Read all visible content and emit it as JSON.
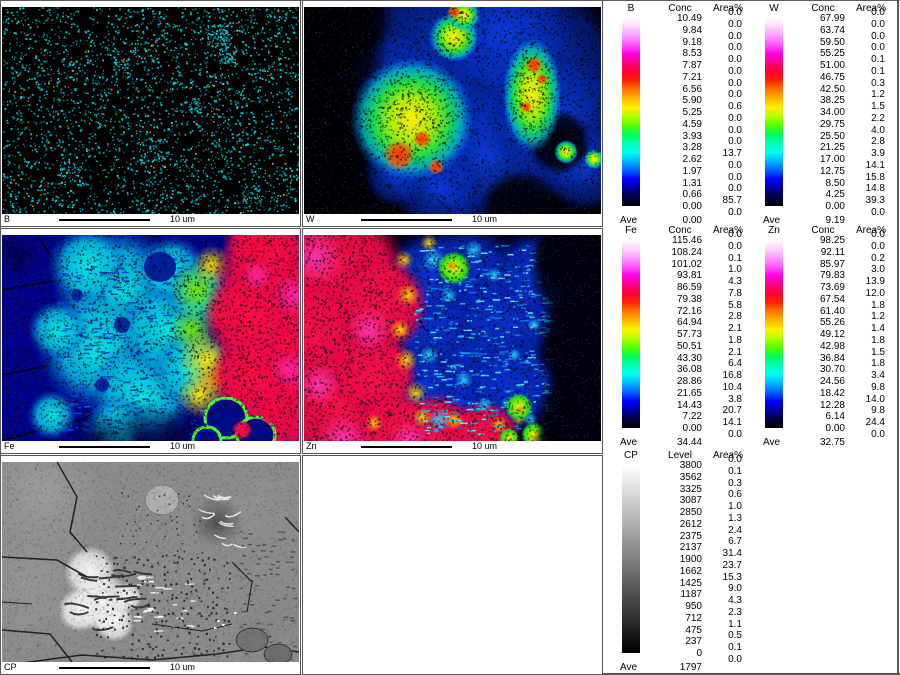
{
  "scale_text": "10 um",
  "colorbar_rainbow": [
    "#ffffff",
    "#ffd2ff",
    "#ff9bff",
    "#ff55ff",
    "#ff00e6",
    "#ff0084",
    "#ff0032",
    "#ff2600",
    "#ff7800",
    "#ffb400",
    "#fff000",
    "#b4ff00",
    "#55ff00",
    "#00ff55",
    "#00ffb4",
    "#00fff0",
    "#00b4ff",
    "#0064ff",
    "#0000ff",
    "#0000a0",
    "#000046",
    "#000000"
  ],
  "colorbar_gray": [
    "#ffffff",
    "#000000"
  ],
  "maps": [
    {
      "id": "b",
      "label": "B",
      "scale": "10 um",
      "colors": {
        "bg": "#000000",
        "dot": "#00c8d2"
      }
    },
    {
      "id": "w",
      "label": "W",
      "scale": "10 um",
      "colors": {
        "bg": "#000004",
        "blue": "#0a3cdc",
        "hot": "#aaee00",
        "red": "#ff2e00"
      }
    },
    {
      "id": "fe",
      "label": "Fe",
      "scale": "10 um",
      "colors": {
        "bg": "#00038c",
        "cyan": "#00e8e0",
        "yellow": "#ffe400",
        "red": "#ff0a3c"
      }
    },
    {
      "id": "zn",
      "label": "Zn",
      "scale": "10 um",
      "colors": {
        "bg": "#000018",
        "red": "#f51144",
        "blue": "#0a30d0",
        "yellow": "#ffe000"
      }
    },
    {
      "id": "cp",
      "label": "CP",
      "scale": "10 um",
      "colors": {
        "bg": "#8c8c8c",
        "bright": "#f0f0f0",
        "dark": "#202020"
      }
    }
  ],
  "legends": [
    {
      "element": "B",
      "col1": "Conc",
      "col2": "Area%",
      "bar": "rainbow",
      "ave_label": "Ave",
      "ave": "0.00",
      "conc": [
        "10.49",
        "9.84",
        "9.18",
        "8.53",
        "7.87",
        "7.21",
        "6.56",
        "5.90",
        "5.25",
        "4.59",
        "3.93",
        "3.28",
        "2.62",
        "1.97",
        "1.31",
        "0.66",
        "0.00"
      ],
      "area": [
        "0.0",
        "0.0",
        "0.0",
        "0.0",
        "0.0",
        "0.0",
        "0.0",
        "0.0",
        "0.6",
        "0.0",
        "0.0",
        "0.0",
        "13.7",
        "0.0",
        "0.0",
        "0.0",
        "85.7",
        "0.0"
      ]
    },
    {
      "element": "W",
      "col1": "Conc",
      "col2": "Area%",
      "bar": "rainbow",
      "ave_label": "Ave",
      "ave": "9.19",
      "conc": [
        "67.99",
        "63.74",
        "59.50",
        "55.25",
        "51.00",
        "46.75",
        "42.50",
        "38.25",
        "34.00",
        "29.75",
        "25.50",
        "21.25",
        "17.00",
        "12.75",
        "8.50",
        "4.25",
        "0.00"
      ],
      "area": [
        "0.0",
        "0.0",
        "0.0",
        "0.0",
        "0.1",
        "0.1",
        "0.3",
        "1.2",
        "1.5",
        "2.2",
        "4.0",
        "2.8",
        "3.9",
        "14.1",
        "15.8",
        "14.8",
        "39.3",
        "0.0"
      ]
    },
    {
      "element": "Fe",
      "col1": "Conc",
      "col2": "Area%",
      "bar": "rainbow",
      "ave_label": "Ave",
      "ave": "34.44",
      "conc": [
        "115.46",
        "108.24",
        "101.02",
        "93.81",
        "86.59",
        "79.38",
        "72.16",
        "64.94",
        "57.73",
        "50.51",
        "43.30",
        "36.08",
        "28.86",
        "21.65",
        "14.43",
        "7.22",
        "0.00"
      ],
      "area": [
        "0.0",
        "0.0",
        "0.1",
        "1.0",
        "4.3",
        "7.8",
        "5.8",
        "2.8",
        "2.1",
        "1.8",
        "2.1",
        "6.4",
        "16.8",
        "10.4",
        "3.8",
        "20.7",
        "14.1",
        "0.0"
      ]
    },
    {
      "element": "Zn",
      "col1": "Conc",
      "col2": "Area%",
      "bar": "rainbow",
      "ave_label": "Ave",
      "ave": "32.75",
      "conc": [
        "98.25",
        "92.11",
        "85.97",
        "79.83",
        "73.69",
        "67.54",
        "61.40",
        "55.26",
        "49.12",
        "42.98",
        "36.84",
        "30.70",
        "24.56",
        "18.42",
        "12.28",
        "6.14",
        "0.00"
      ],
      "area": [
        "0.0",
        "0.0",
        "0.2",
        "3.0",
        "13.9",
        "12.0",
        "1.8",
        "1.2",
        "1.4",
        "1.8",
        "1.5",
        "1.8",
        "3.4",
        "9.8",
        "14.0",
        "9.8",
        "24.4",
        "0.0"
      ]
    },
    {
      "element": "CP",
      "col1": "Level",
      "col2": "Area%",
      "bar": "gray",
      "ave_label": "Ave",
      "ave": "1797",
      "conc": [
        "3800",
        "3562",
        "3325",
        "3087",
        "2850",
        "2612",
        "2375",
        "2137",
        "1900",
        "1662",
        "1425",
        "1187",
        "950",
        "712",
        "475",
        "237",
        "0"
      ],
      "area": [
        "0.0",
        "0.1",
        "0.3",
        "0.6",
        "1.0",
        "1.3",
        "2.4",
        "6.7",
        "31.4",
        "23.7",
        "15.3",
        "9.0",
        "4.3",
        "2.3",
        "1.1",
        "0.5",
        "0.1",
        "0.0"
      ]
    }
  ]
}
